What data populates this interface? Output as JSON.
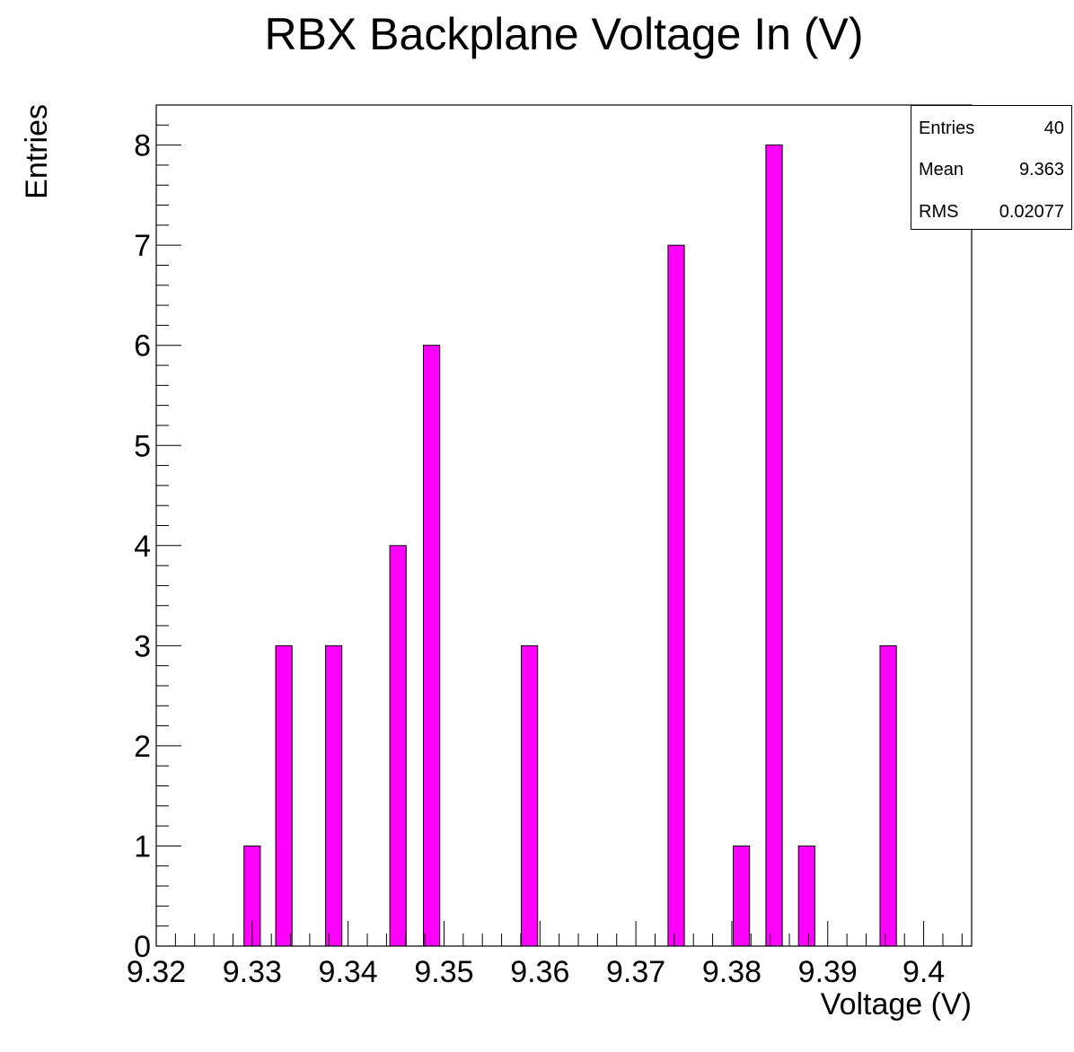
{
  "chart_data": {
    "type": "bar",
    "title": "RBX Backplane Voltage In (V)",
    "xlabel": "Voltage (V)",
    "ylabel": "Entries",
    "xlim": [
      9.32,
      9.405
    ],
    "ylim": [
      0,
      8.4
    ],
    "x_ticks": [
      "9.32",
      "9.33",
      "9.34",
      "9.35",
      "9.36",
      "9.37",
      "9.38",
      "9.39",
      "9.4"
    ],
    "y_ticks": [
      "0",
      "1",
      "2",
      "3",
      "4",
      "5",
      "6",
      "7",
      "8"
    ],
    "bin_width": 0.0017,
    "bars": [
      {
        "x": 9.33,
        "value": 1
      },
      {
        "x": 9.3333,
        "value": 3
      },
      {
        "x": 9.3385,
        "value": 3
      },
      {
        "x": 9.3452,
        "value": 4
      },
      {
        "x": 9.3487,
        "value": 6
      },
      {
        "x": 9.3589,
        "value": 3
      },
      {
        "x": 9.3742,
        "value": 7
      },
      {
        "x": 9.381,
        "value": 1
      },
      {
        "x": 9.3844,
        "value": 8
      },
      {
        "x": 9.3878,
        "value": 1
      },
      {
        "x": 9.3963,
        "value": 3
      }
    ],
    "color": "#ff00ff",
    "grid": false
  },
  "stats": {
    "entries_label": "Entries",
    "entries_value": "40",
    "mean_label": "Mean",
    "mean_value": "9.363",
    "rms_label": "RMS",
    "rms_value": "0.02077"
  }
}
